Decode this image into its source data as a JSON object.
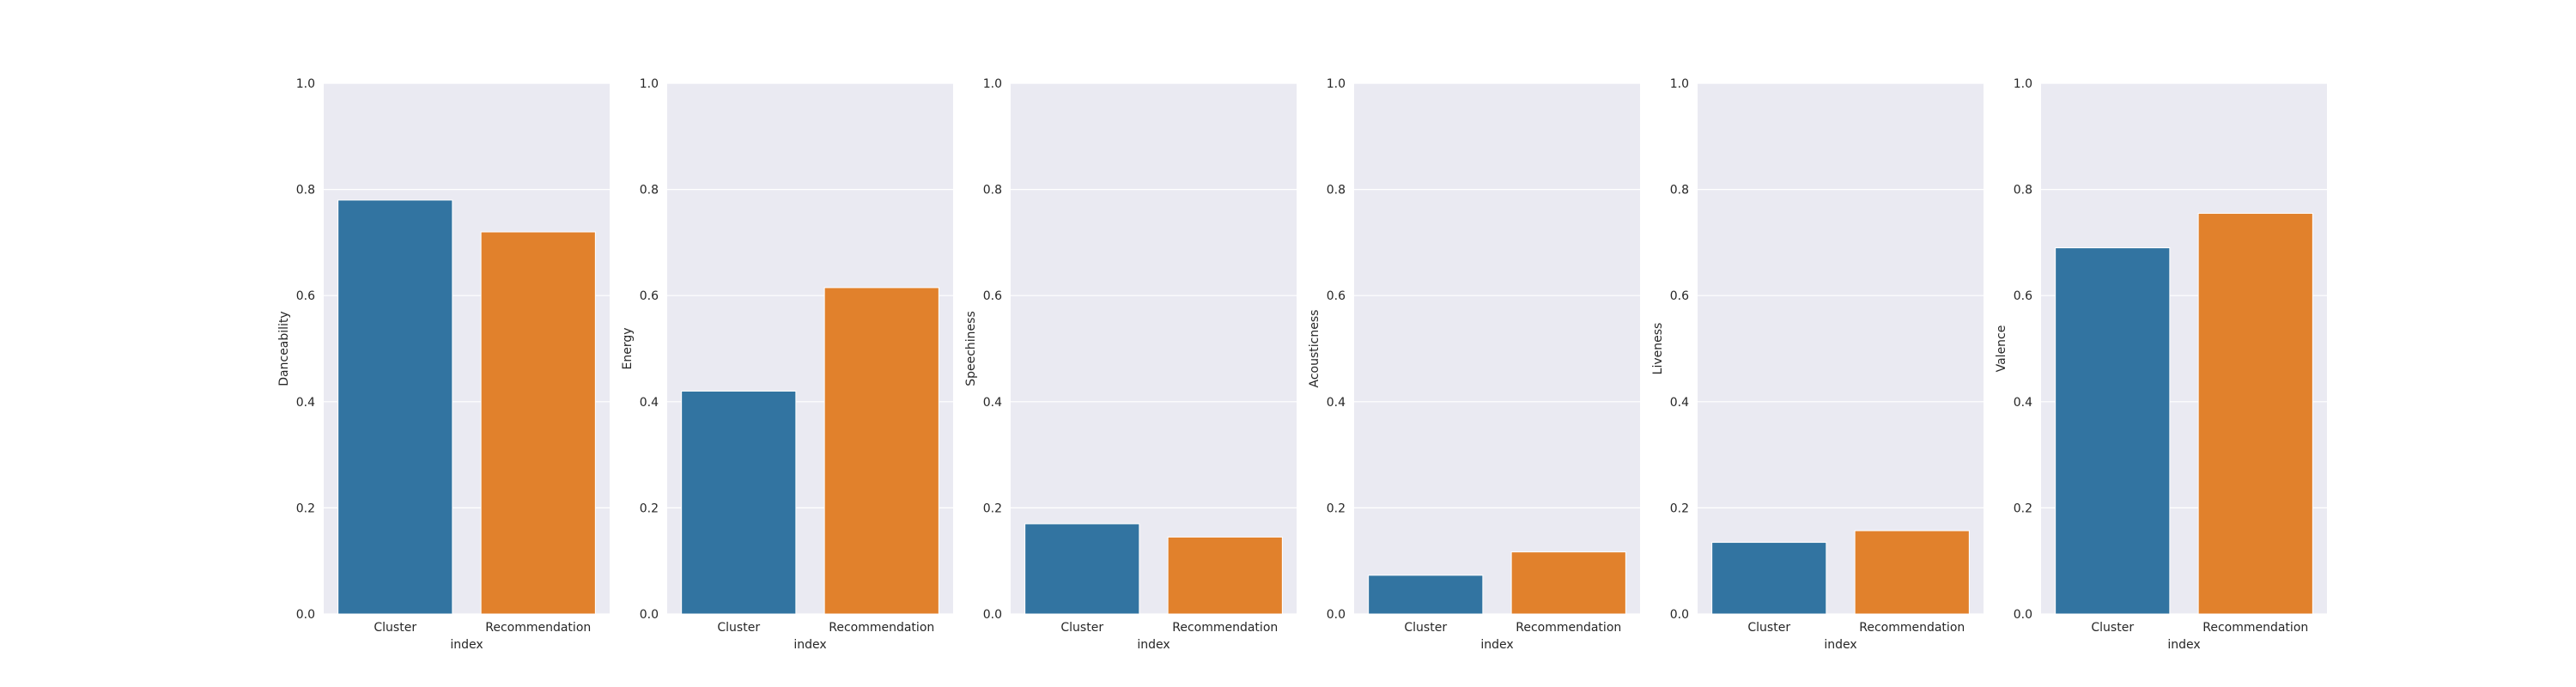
{
  "colors": {
    "plot_background": "#eaeaf2",
    "grid": "#ffffff",
    "series": [
      "#3274a1",
      "#e1812c"
    ]
  },
  "chart_data": [
    {
      "type": "bar",
      "title": "",
      "xlabel": "index",
      "ylabel": "Danceability",
      "categories": [
        "Cluster",
        "Recommendation"
      ],
      "values": [
        0.78,
        0.72
      ],
      "ylim": [
        0,
        1.0
      ],
      "yticks": [
        "0.0",
        "0.2",
        "0.4",
        "0.6",
        "0.8",
        "1.0"
      ],
      "grid": true
    },
    {
      "type": "bar",
      "title": "",
      "xlabel": "index",
      "ylabel": "Energy",
      "categories": [
        "Cluster",
        "Recommendation"
      ],
      "values": [
        0.42,
        0.615
      ],
      "ylim": [
        0,
        1.0
      ],
      "yticks": [
        "0.0",
        "0.2",
        "0.4",
        "0.6",
        "0.8",
        "1.0"
      ],
      "grid": true
    },
    {
      "type": "bar",
      "title": "",
      "xlabel": "index",
      "ylabel": "Speechiness",
      "categories": [
        "Cluster",
        "Recommendation"
      ],
      "values": [
        0.17,
        0.145
      ],
      "ylim": [
        0,
        1.0
      ],
      "yticks": [
        "0.0",
        "0.2",
        "0.4",
        "0.6",
        "0.8",
        "1.0"
      ],
      "grid": true
    },
    {
      "type": "bar",
      "title": "",
      "xlabel": "index",
      "ylabel": "Acousticness",
      "categories": [
        "Cluster",
        "Recommendation"
      ],
      "values": [
        0.073,
        0.117
      ],
      "ylim": [
        0,
        1.0
      ],
      "yticks": [
        "0.0",
        "0.2",
        "0.4",
        "0.6",
        "0.8",
        "1.0"
      ],
      "grid": true
    },
    {
      "type": "bar",
      "title": "",
      "xlabel": "index",
      "ylabel": "Liveness",
      "categories": [
        "Cluster",
        "Recommendation"
      ],
      "values": [
        0.135,
        0.157
      ],
      "ylim": [
        0,
        1.0
      ],
      "yticks": [
        "0.0",
        "0.2",
        "0.4",
        "0.6",
        "0.8",
        "1.0"
      ],
      "grid": true
    },
    {
      "type": "bar",
      "title": "",
      "xlabel": "index",
      "ylabel": "Valence",
      "categories": [
        "Cluster",
        "Recommendation"
      ],
      "values": [
        0.69,
        0.755
      ],
      "ylim": [
        0,
        1.0
      ],
      "yticks": [
        "0.0",
        "0.2",
        "0.4",
        "0.6",
        "0.8",
        "1.0"
      ],
      "grid": true
    }
  ]
}
